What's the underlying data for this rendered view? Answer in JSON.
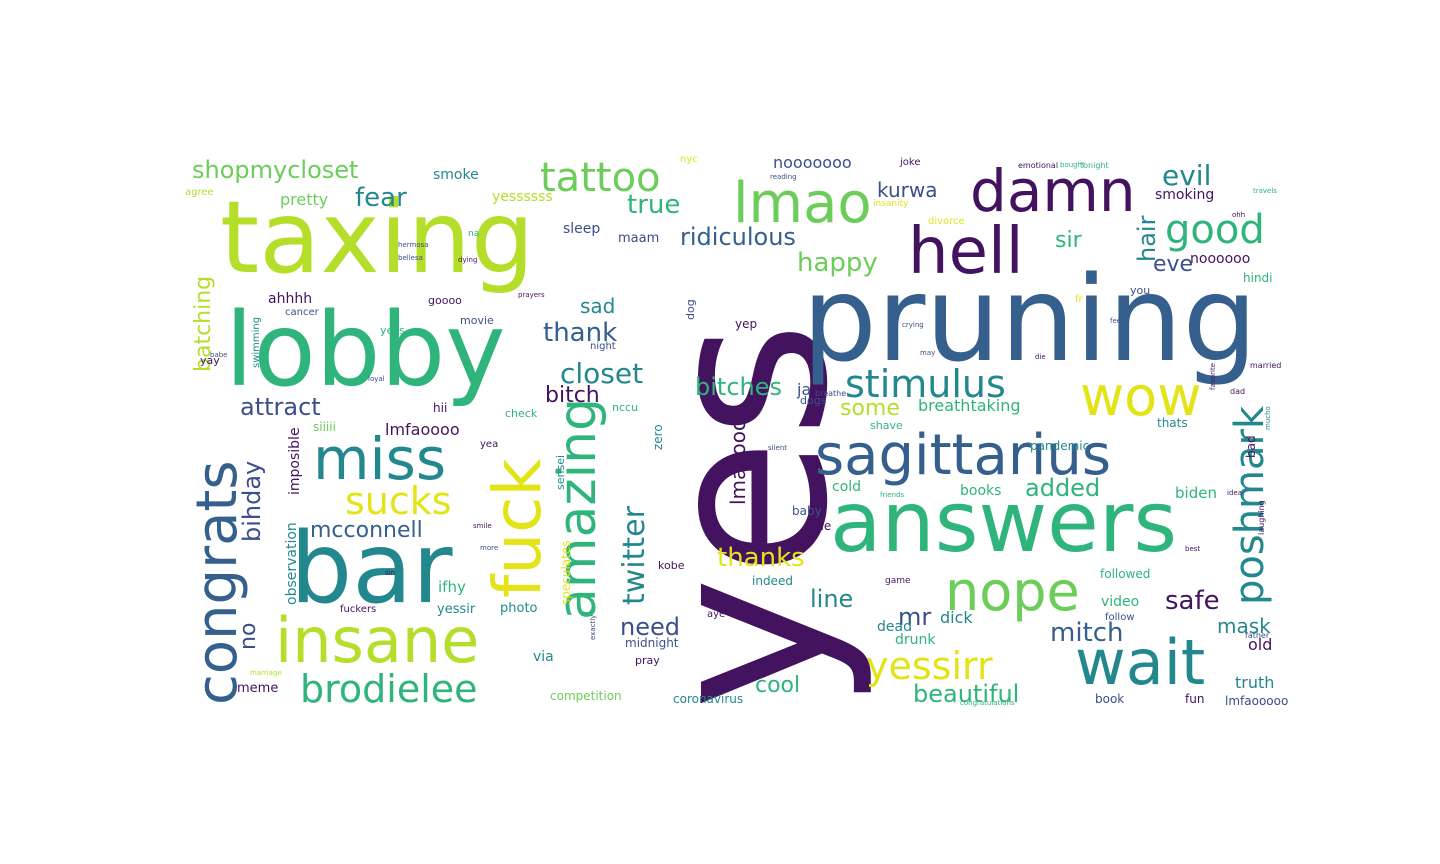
{
  "colors": {
    "purple": "#44135f",
    "indigo": "#3b4f8a",
    "blue": "#355f8d",
    "teal": "#23888e",
    "green": "#2fb47c",
    "lightgreen": "#6ccd5a",
    "lime": "#b5de2b",
    "yellow": "#e3e418"
  },
  "words": {
    "yes": "yes",
    "pruning": "pruning",
    "taxing": "taxing",
    "lobby": "lobby",
    "answers": "answers",
    "bar": "bar",
    "sagittarius": "sagittarius",
    "hell": "hell",
    "damn": "damn",
    "lmao": "lmao",
    "wait": "wait",
    "insane": "insane",
    "miss": "miss",
    "congrats": "congrats",
    "fuck": "fuck",
    "amazing": "amazing",
    "nope": "nope",
    "wow": "wow",
    "stimulus": "stimulus",
    "tattoo": "tattoo",
    "good": "good",
    "brodielee": "brodielee",
    "poshmark": "poshmark",
    "sucks": "sucks",
    "yessirr": "yessirr",
    "shopmycloset": "shopmycloset",
    "ridiculous": "ridiculous",
    "evil": "evil",
    "closet": "closet",
    "attract": "attract",
    "thank": "thank",
    "bitches": "bitches",
    "twitter": "twitter",
    "happy": "happy",
    "kurwa": "kurwa",
    "fear": "fear",
    "true": "true",
    "hair": "hair",
    "mcconnell": "mcconnell",
    "batching": "batching",
    "bihday": "bihday",
    "mitch": "mitch",
    "safe": "safe",
    "beautiful": "beautiful",
    "thanks": "thanks",
    "added": "added",
    "line": "line",
    "need": "need",
    "cool": "cool",
    "some": "some",
    "mr": "mr",
    "mask": "mask",
    "sir": "sir",
    "eve": "eve",
    "nooooooo": "nooooooo",
    "breathtaking": "breathtaking",
    "bitch": "bitch",
    "sad": "sad",
    "lmaoooo": "lmaoooo",
    "lmfaoooo": "lmfaoooo",
    "no": "no",
    "pretty": "pretty",
    "smoking": "smoking",
    "noooooo": "noooooo",
    "biden": "biden",
    "books": "books",
    "ahhhh": "ahhhh",
    "maam": "maam",
    "sleep": "sleep",
    "yessssss": "yessssss",
    "smoke": "smoke",
    "imposible": "imposible",
    "observation": "observation",
    "meme": "meme",
    "truth": "truth",
    "old": "old",
    "dick": "dick",
    "dead": "dead",
    "drunk": "drunk",
    "video": "video",
    "followed": "followed",
    "competition": "competition",
    "coronavirus": "coronavirus",
    "lmfaooooo": "lmfaooooo",
    "fun": "fun",
    "book": "book",
    "ifhy": "ifhy",
    "yessir": "yessir",
    "photo": "photo",
    "via": "via",
    "midnight": "midnight",
    "pray": "pray",
    "indeed": "indeed",
    "kobe": "kobe",
    "cold": "cold",
    "baby": "baby",
    "she": "she",
    "siiiii": "siiiii",
    "hii": "hii",
    "ja": "ja",
    "zero": "zero",
    "speculates": "speculates",
    "sensei": "sensei",
    "pandemic": "pandemic",
    "thats": "thats",
    "shave": "shave",
    "yep": "yep",
    "dog": "dog",
    "goooo": "goooo",
    "yess": "yess",
    "cancer": "cancer",
    "movie": "movie",
    "night": "night",
    "yay": "yay",
    "swimming": "swimming",
    "hindi": "hindi",
    "you": "you",
    "dogs": "dogs",
    "check": "check",
    "nccu": "nccu",
    "fuckers": "fuckers",
    "follow": "follow",
    "nyc": "nyc",
    "joke": "joke",
    "divorce": "divorce",
    "insanity": "insanity",
    "emotional": "emotional",
    "tonight": "tonight",
    "agree": "agree",
    "bad": "bad",
    "laughing": "laughing",
    "aye": "aye",
    "yea": "yea",
    "na": "na",
    "breathe": "breathe",
    "game": "game",
    "dad": "dad",
    "married": "married",
    "father": "father",
    "babe": "babe",
    "reading": "reading",
    "crying": "crying",
    "fr": "fr",
    "ohh": "ohh",
    "hermosa": "hermosa",
    "bellesa": "bellesa",
    "dying": "dying",
    "travels": "travels",
    "friends": "friends",
    "congratulations": "congratulations",
    "idea": "idea",
    "marriage": "marriage",
    "more": "more",
    "smile": "smile",
    "mucho": "mucho",
    "bought": "bought",
    "silent": "silent",
    "favorite": "favorite",
    "feel": "feel",
    "best": "best",
    "die": "die",
    "may": "may",
    "exactly": "exactly",
    "sin": "sin",
    "loyal": "loyal",
    "prayers": "prayers"
  }
}
